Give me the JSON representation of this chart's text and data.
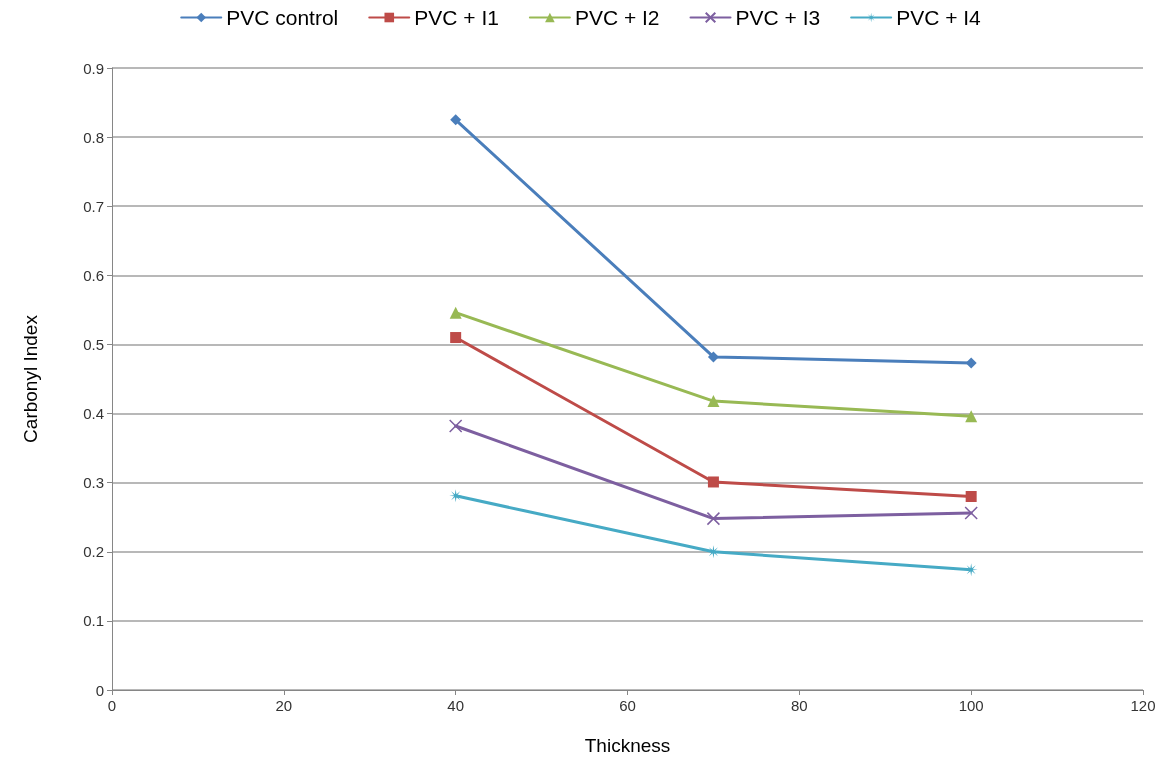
{
  "chart_data": {
    "type": "line",
    "xlabel": "Thickness",
    "ylabel": "Carbonyl Index",
    "x": [
      40,
      70,
      100
    ],
    "xlim": [
      0,
      120
    ],
    "xticks": [
      0,
      20,
      40,
      60,
      80,
      100,
      120
    ],
    "ylim": [
      0,
      0.9
    ],
    "yticks": [
      0,
      0.1,
      0.2,
      0.3,
      0.4,
      0.5,
      0.6,
      0.7,
      0.8,
      0.9
    ],
    "grid": "y",
    "legend": "top",
    "line_style": "solid",
    "series": [
      {
        "name": "PVC control",
        "color": "#4a7ebb",
        "marker": "diamond",
        "values": [
          0.825,
          0.482,
          0.473
        ]
      },
      {
        "name": "PVC + I1",
        "color": "#be4b48",
        "marker": "square",
        "values": [
          0.51,
          0.301,
          0.28
        ]
      },
      {
        "name": "PVC + I2",
        "color": "#98b954",
        "marker": "triangle",
        "values": [
          0.546,
          0.418,
          0.396
        ]
      },
      {
        "name": "PVC + I3",
        "color": "#7d5fa0",
        "marker": "cross",
        "values": [
          0.382,
          0.248,
          0.256
        ]
      },
      {
        "name": "PVC + I4",
        "color": "#46aac5",
        "marker": "star",
        "values": [
          0.281,
          0.2,
          0.174
        ]
      }
    ]
  }
}
